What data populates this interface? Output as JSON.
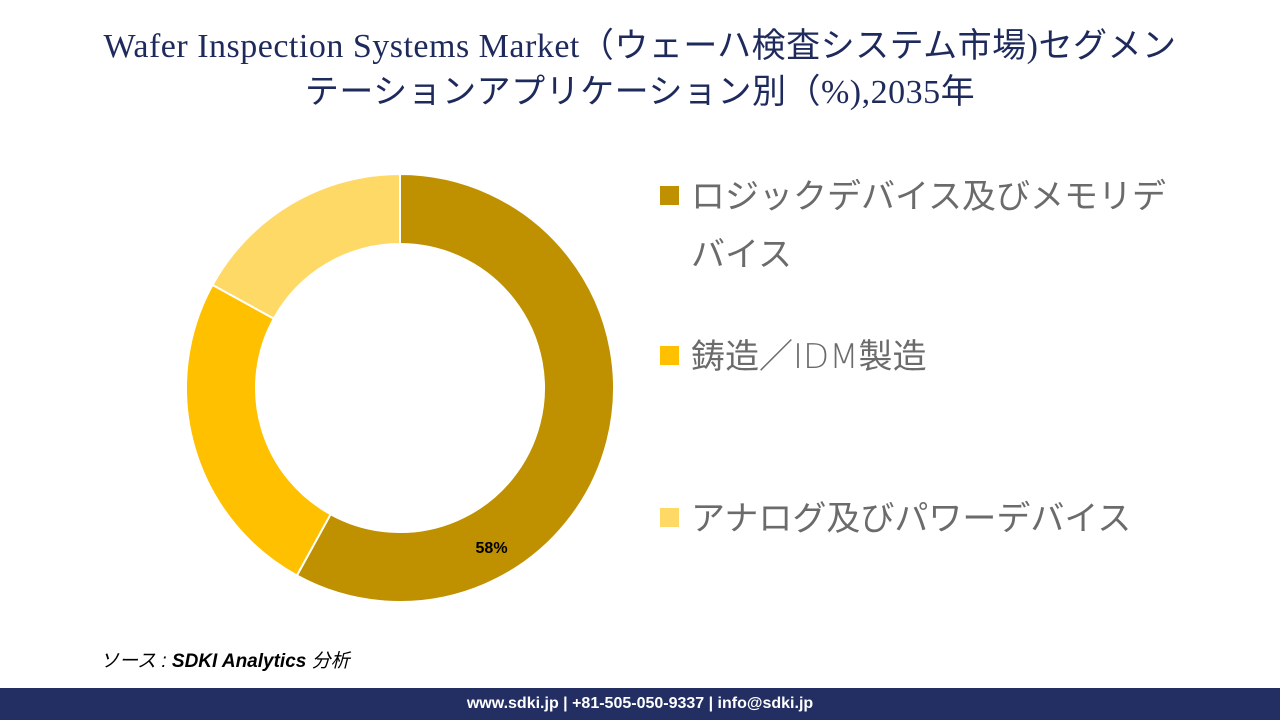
{
  "title": {
    "line1": "Wafer Inspection Systems Market（ウェーハ検査システム市場)セグメン",
    "line2": "テーションアプリケーション別（%),2035年"
  },
  "chart_data": {
    "type": "pie",
    "style": "donut",
    "categories": [
      "ロジックデバイス及びメモリデバイス",
      "鋳造／IDM製造",
      "アナログ及びパワーデバイス"
    ],
    "values": [
      58,
      25,
      17
    ],
    "data_labels": [
      "58%",
      "",
      ""
    ],
    "colors": [
      "#bf9000",
      "#ffc000",
      "#ffd966"
    ],
    "legend_position": "right"
  },
  "legend": {
    "items": [
      {
        "label": "ロジックデバイス及びメモリデバイス"
      },
      {
        "label": "鋳造／IDM製造"
      },
      {
        "label": "アナログ及びパワーデバイス"
      }
    ]
  },
  "source": {
    "prefix": "ソース : ",
    "name": "SDKI Analytics",
    "suffix": " 分析"
  },
  "footer": {
    "text": "www.sdki.jp | +81-505-050-9337 | info@sdki.jp"
  }
}
